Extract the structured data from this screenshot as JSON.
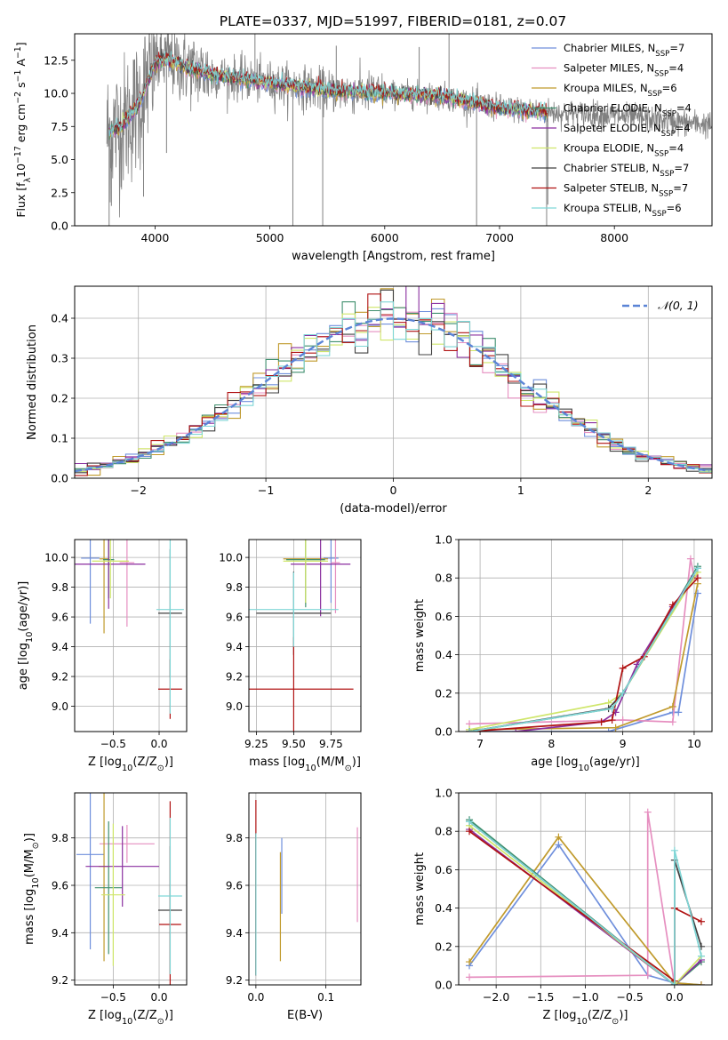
{
  "figure": {
    "title": "PLATE=0337, MJD=51997, FIBERID=0181, z=0.07"
  },
  "colors": [
    "#6f8fdc",
    "#e68fc0",
    "#c09a2c",
    "#3f8f6e",
    "#8a2f9f",
    "#cfe66a",
    "#404040",
    "#b01212",
    "#7fd6d6"
  ],
  "chart_data": [
    {
      "id": "spectrum",
      "type": "line",
      "xlabel": "wavelength [Angstrom, rest frame]",
      "ylabel": "Flux [f$_\\lambda$10$^{-17}$ erg cm$^{-2}$ s$^{-1}$ A$^{-1}$]",
      "ylabel_parts": [
        "Flux [f",
        "λ",
        "10",
        "−17",
        " erg cm",
        "−2",
        " s",
        "−1",
        " A",
        "−1",
        "]"
      ],
      "xlim": [
        3300,
        8850
      ],
      "ylim": [
        0,
        14.5
      ],
      "xticks": [
        4000,
        5000,
        6000,
        7000,
        8000
      ],
      "yticks": [
        0.0,
        2.5,
        5.0,
        7.5,
        10.0,
        12.5
      ],
      "legend_position": "top-right",
      "legend": [
        "Chabrier MILES, N$_{SSP}$=7",
        "Salpeter MILES, N$_{SSP}$=4",
        "Kroupa MILES, N$_{SSP}$=6",
        "Chabrier ELODIE, N$_{SSP}$=4",
        "Salpeter ELODIE, N$_{SSP}$=4",
        "Kroupa ELODIE, N$_{SSP}$=4",
        "Chabrier STELIB, N$_{SSP}$=7",
        "Salpeter STELIB, N$_{SSP}$=7",
        "Kroupa STELIB, N$_{SSP}$=6"
      ],
      "legend_items": [
        {
          "label": "Chabrier MILES, N",
          "sub": "SSP",
          "suffix": "=7"
        },
        {
          "label": "Salpeter MILES, N",
          "sub": "SSP",
          "suffix": "=4"
        },
        {
          "label": "Kroupa MILES, N",
          "sub": "SSP",
          "suffix": "=6"
        },
        {
          "label": "Chabrier ELODIE, N",
          "sub": "SSP",
          "suffix": "=4"
        },
        {
          "label": "Salpeter ELODIE, N",
          "sub": "SSP",
          "suffix": "=4"
        },
        {
          "label": "Kroupa ELODIE, N",
          "sub": "SSP",
          "suffix": "=4"
        },
        {
          "label": "Chabrier STELIB, N",
          "sub": "SSP",
          "suffix": "=7"
        },
        {
          "label": "Salpeter STELIB, N",
          "sub": "SSP",
          "suffix": "=7"
        },
        {
          "label": "Kroupa STELIB, N",
          "sub": "SSP",
          "suffix": "=6"
        }
      ],
      "data_range": [
        3580,
        8850
      ],
      "model_range": [
        3600,
        7420
      ],
      "continuum": [
        [
          3580,
          7.0
        ],
        [
          3700,
          7.5
        ],
        [
          3850,
          9.0
        ],
        [
          3950,
          11.2
        ],
        [
          4000,
          12.3
        ],
        [
          4100,
          12.6
        ],
        [
          4250,
          12.0
        ],
        [
          4500,
          11.4
        ],
        [
          5000,
          10.8
        ],
        [
          5500,
          10.2
        ],
        [
          6000,
          10.0
        ],
        [
          6500,
          9.8
        ],
        [
          7000,
          8.9
        ],
        [
          7400,
          8.6
        ],
        [
          8000,
          8.3
        ],
        [
          8500,
          7.9
        ],
        [
          8850,
          7.6
        ]
      ],
      "spikes": [
        [
          3600,
          0
        ],
        [
          3620,
          1.5
        ],
        [
          3900,
          2.2
        ],
        [
          4100,
          5.5
        ],
        [
          4870,
          14.5
        ],
        [
          5200,
          0
        ],
        [
          5460,
          0
        ],
        [
          5578,
          13.6
        ],
        [
          6300,
          13.5
        ],
        [
          6560,
          14.5
        ],
        [
          6800,
          0
        ],
        [
          7410,
          0
        ],
        [
          7420,
          1.6
        ]
      ]
    },
    {
      "id": "residuals",
      "type": "histogram",
      "xlabel": "(data-model)/error",
      "ylabel": "Normed distribution",
      "xlim": [
        -2.5,
        2.5
      ],
      "ylim": [
        0,
        0.48
      ],
      "xticks": [
        -2,
        -1,
        0,
        1,
        2
      ],
      "xticklabels": [
        "−2",
        "−1",
        "0",
        "1",
        "2"
      ],
      "yticks": [
        0.0,
        0.1,
        0.2,
        0.3,
        0.4
      ],
      "grid": true,
      "bin_width": 0.1,
      "legend_position": "top-right",
      "reference_curve": {
        "label": "$\\mathcal{N}(0,1)$",
        "label_text": "𝒩(0, 1)",
        "mean": 0,
        "sigma": 1,
        "color": "#5b84d6"
      }
    },
    {
      "id": "age_vs_Z",
      "type": "scatter",
      "xlabel": "Z [log$_{10}$(Z/Z$_\\odot$)]",
      "ylabel": "age  [log$_{10}$(age/yr)]",
      "xlim": [
        -0.92,
        0.3
      ],
      "ylim": [
        8.83,
        10.12
      ],
      "xticks": [
        -0.5,
        0.0
      ],
      "xticklabels": [
        "−0.5",
        "0.0"
      ],
      "yticks": [
        9.0,
        9.2,
        9.4,
        9.6,
        9.8,
        10.0
      ],
      "points": [
        {
          "x": -0.75,
          "y": 9.995,
          "xerr": 0.1,
          "yerr": 0.44
        },
        {
          "x": -0.35,
          "y": 9.965,
          "xerr": 0.08,
          "yerr": 0.43
        },
        {
          "x": -0.6,
          "y": 9.99,
          "xerr": 0.05,
          "yerr": 0.5
        },
        {
          "x": -0.55,
          "y": 9.985,
          "xerr": 0.06,
          "yerr": 0.26
        },
        {
          "x": -0.55,
          "y": 9.955,
          "xerr": 0.4,
          "yerr": 0.3
        },
        {
          "x": -0.53,
          "y": 9.975,
          "xerr": 0.2,
          "yerr": 0.25
        },
        {
          "x": 0.12,
          "y": 9.625,
          "xerr": 0.13,
          "yerr": 0.43
        },
        {
          "x": 0.12,
          "y": 9.115,
          "xerr": 0.13,
          "yerr": 0.2
        },
        {
          "x": 0.12,
          "y": 9.65,
          "xerr": 0.15,
          "yerr": 0.7
        }
      ]
    },
    {
      "id": "age_vs_mass",
      "type": "scatter",
      "xlabel": "mass [log$_{10}$(M/M$_\\odot$)]",
      "ylabel": "",
      "xlim": [
        9.2,
        9.95
      ],
      "ylim": [
        8.83,
        10.12
      ],
      "xticks": [
        9.25,
        9.5,
        9.75
      ],
      "xticklabels": [
        "9.25",
        "9.50",
        "9.75"
      ],
      "yticks": [
        9.0,
        9.2,
        9.4,
        9.6,
        9.8,
        10.0
      ],
      "points": [
        {
          "x": 9.75,
          "y": 9.995,
          "xerr": 0.05,
          "yerr": 0.3
        },
        {
          "x": 9.78,
          "y": 9.965,
          "xerr": 0.03,
          "yerr": 0.34
        },
        {
          "x": 9.58,
          "y": 9.99,
          "xerr": 0.15,
          "yerr": 0.3
        },
        {
          "x": 9.58,
          "y": 9.985,
          "xerr": 0.13,
          "yerr": 0.32
        },
        {
          "x": 9.68,
          "y": 9.955,
          "xerr": 0.2,
          "yerr": 0.35
        },
        {
          "x": 9.58,
          "y": 9.975,
          "xerr": 0.15,
          "yerr": 0.28
        },
        {
          "x": 9.5,
          "y": 9.625,
          "xerr": 0.25,
          "yerr": 0.28
        },
        {
          "x": 9.5,
          "y": 9.115,
          "xerr": 0.4,
          "yerr": 0.35
        },
        {
          "x": 9.5,
          "y": 9.65,
          "xerr": 0.3,
          "yerr": 0.25
        }
      ]
    },
    {
      "id": "mass_weight_vs_age",
      "type": "line",
      "xlabel": "age  [log$_{10}$(age/yr)]",
      "ylabel": "mass weight",
      "xlim": [
        6.7,
        10.25
      ],
      "ylim": [
        0,
        1
      ],
      "xticks": [
        7,
        8,
        9,
        10
      ],
      "yticks": [
        0.0,
        0.2,
        0.4,
        0.6,
        0.8,
        1.0
      ],
      "series": [
        {
          "x": [
            6.85,
            8.8,
            9.7,
            9.78,
            10.05
          ],
          "y": [
            0.0,
            0.0,
            0.1,
            0.1,
            0.72
          ]
        },
        {
          "x": [
            6.85,
            9.0,
            9.7,
            9.95,
            10.0
          ],
          "y": [
            0.04,
            0.06,
            0.05,
            0.9,
            0.8
          ]
        },
        {
          "x": [
            6.85,
            8.9,
            9.7,
            10.05
          ],
          "y": [
            0.01,
            0.02,
            0.13,
            0.77
          ]
        },
        {
          "x": [
            6.85,
            8.85,
            9.0,
            10.05
          ],
          "y": [
            0.0,
            0.12,
            0.2,
            0.86
          ]
        },
        {
          "x": [
            7.5,
            8.7,
            8.9,
            9.2,
            9.7,
            10.0
          ],
          "y": [
            0.0,
            0.05,
            0.1,
            0.35,
            0.65,
            0.81
          ]
        },
        {
          "x": [
            6.85,
            8.8,
            9.0,
            10.05
          ],
          "y": [
            0.01,
            0.15,
            0.2,
            0.83
          ]
        },
        {
          "x": [
            6.85,
            8.8,
            9.0,
            10.05
          ],
          "y": [
            0.0,
            0.12,
            0.2,
            0.85
          ]
        },
        {
          "x": [
            6.85,
            8.7,
            8.85,
            9.0,
            9.3,
            9.7,
            10.05
          ],
          "y": [
            0.0,
            0.05,
            0.06,
            0.33,
            0.39,
            0.66,
            0.8
          ]
        },
        {
          "x": [
            6.85,
            8.85,
            9.0,
            10.05
          ],
          "y": [
            0.0,
            0.12,
            0.2,
            0.85
          ]
        }
      ]
    },
    {
      "id": "mass_vs_Z",
      "type": "scatter",
      "xlabel": "Z [log$_{10}$(Z/Z$_\\odot$)]",
      "ylabel": "mass [log$_{10}$(M/M$_\\odot$)]",
      "xlim": [
        -0.92,
        0.3
      ],
      "ylim": [
        9.18,
        9.99
      ],
      "xticks": [
        -0.5,
        0.0
      ],
      "xticklabels": [
        "−0.5",
        "0.0"
      ],
      "yticks": [
        9.2,
        9.4,
        9.6,
        9.8
      ],
      "points": [
        {
          "x": -0.75,
          "y": 9.73,
          "xerr": 0.15,
          "yerr": 0.4
        },
        {
          "x": -0.35,
          "y": 9.775,
          "xerr": 0.3,
          "yerr": 0.08
        },
        {
          "x": -0.6,
          "y": 9.68,
          "xerr": 0.06,
          "yerr": 0.4
        },
        {
          "x": -0.55,
          "y": 9.59,
          "xerr": 0.15,
          "yerr": 0.28
        },
        {
          "x": -0.4,
          "y": 9.68,
          "xerr": 0.4,
          "yerr": 0.17
        },
        {
          "x": -0.5,
          "y": 9.56,
          "xerr": 0.13,
          "yerr": 0.3
        },
        {
          "x": 0.12,
          "y": 9.495,
          "xerr": 0.13,
          "yerr": 0.27
        },
        {
          "x": 0.12,
          "y": 9.435,
          "xerr": 0.12,
          "yerr": 0.52
        },
        {
          "x": 0.12,
          "y": 9.555,
          "xerr": 0.13,
          "yerr": 0.33
        }
      ]
    },
    {
      "id": "mass_vs_ebv",
      "type": "scatter",
      "xlabel": "E(B-V)",
      "ylabel": "",
      "xlim": [
        -0.01,
        0.15
      ],
      "ylim": [
        9.18,
        9.99
      ],
      "xticks": [
        0.0,
        0.1
      ],
      "xticklabels": [
        "0.0",
        "0.1"
      ],
      "yticks": [
        9.2,
        9.4,
        9.6,
        9.8
      ],
      "points": [
        {
          "x": 0.037,
          "y": 9.64,
          "xerr": 0,
          "yerr": 0.16
        },
        {
          "x": 0.145,
          "y": 9.645,
          "xerr": 0,
          "yerr": 0.2
        },
        {
          "x": 0.035,
          "y": 9.51,
          "xerr": 0,
          "yerr": 0.23
        },
        {
          "x": 0.0,
          "y": 9.52,
          "xerr": 0,
          "yerr": 0.3
        },
        {
          "x": 0.0,
          "y": 9.52,
          "xerr": 0,
          "yerr": 0.3
        },
        {
          "x": 0.0,
          "y": 9.52,
          "xerr": 0,
          "yerr": 0.3
        },
        {
          "x": 0.0,
          "y": 9.52,
          "xerr": 0,
          "yerr": 0.3
        },
        {
          "x": 0.0,
          "y": 9.59,
          "xerr": 0,
          "yerr": 0.37
        },
        {
          "x": 0.0,
          "y": 9.52,
          "xerr": 0,
          "yerr": 0.3
        }
      ]
    },
    {
      "id": "mass_weight_vs_Z",
      "type": "line",
      "xlabel": "Z [log$_{10}$(Z/Z$_\\odot$)]",
      "ylabel": "mass weight",
      "xlim": [
        -2.42,
        0.42
      ],
      "ylim": [
        0,
        1
      ],
      "xticks": [
        -2.0,
        -1.5,
        -1.0,
        -0.5,
        0.0
      ],
      "xticklabels": [
        "−2.0",
        "−1.5",
        "−1.0",
        "−0.5",
        "0.0"
      ],
      "yticks": [
        0.0,
        0.2,
        0.4,
        0.6,
        0.8,
        1.0
      ],
      "series": [
        {
          "x": [
            -2.3,
            -1.3,
            -0.3,
            0.0,
            0.3
          ],
          "y": [
            0.1,
            0.73,
            0.05,
            0.01,
            0.0
          ]
        },
        {
          "x": [
            -2.3,
            -0.3,
            -0.3,
            0.0,
            0.3
          ],
          "y": [
            0.04,
            0.05,
            0.9,
            0.0,
            0.0
          ]
        },
        {
          "x": [
            -2.3,
            -1.3,
            0.0,
            0.3
          ],
          "y": [
            0.12,
            0.77,
            0.01,
            0.0
          ]
        },
        {
          "x": [
            -2.3,
            0.0,
            0.3
          ],
          "y": [
            0.86,
            0.0,
            0.12
          ]
        },
        {
          "x": [
            -2.3,
            0.0,
            0.3
          ],
          "y": [
            0.81,
            0.0,
            0.13
          ]
        },
        {
          "x": [
            -2.3,
            0.0,
            0.3
          ],
          "y": [
            0.83,
            0.0,
            0.15
          ]
        },
        {
          "x": [
            -2.3,
            0.0,
            0.0,
            0.3
          ],
          "y": [
            0.85,
            0.0,
            0.65,
            0.2
          ]
        },
        {
          "x": [
            -2.3,
            0.0,
            0.0,
            0.3
          ],
          "y": [
            0.8,
            0.02,
            0.4,
            0.33
          ]
        },
        {
          "x": [
            -2.3,
            0.0,
            0.0,
            0.3
          ],
          "y": [
            0.85,
            0.0,
            0.7,
            0.15
          ]
        }
      ]
    }
  ]
}
